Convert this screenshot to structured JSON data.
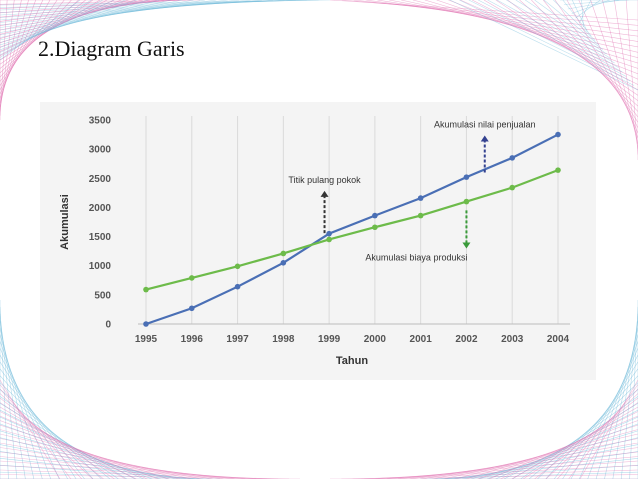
{
  "slide": {
    "title": "2.Diagram Garis"
  },
  "colors": {
    "sales": "#4a6fb5",
    "production": "#6dbb4a",
    "arrow_sales": "#33418f",
    "arrow_breakeven": "#333333",
    "arrow_production": "#3a9a3a",
    "decor_pink": "#e070b0",
    "decor_blue": "#6bb8d8"
  },
  "chart_data": {
    "type": "line",
    "xlabel": "Tahun",
    "ylabel": "Akumulasi",
    "ylim": [
      0,
      3500
    ],
    "yticks": [
      0,
      500,
      1000,
      1500,
      2000,
      2500,
      3000,
      3500
    ],
    "x": [
      "1995",
      "1996",
      "1997",
      "1998",
      "1999",
      "2000",
      "2001",
      "2002",
      "2003",
      "2004"
    ],
    "grid": "vertical",
    "series": [
      {
        "name": "Akumulasi nilai penjualan",
        "values": [
          0,
          270,
          640,
          1050,
          1550,
          1860,
          2160,
          2520,
          2850,
          3250
        ]
      },
      {
        "name": "Akumulasi biaya produksi",
        "values": [
          590,
          790,
          990,
          1210,
          1450,
          1660,
          1860,
          2100,
          2340,
          2640
        ]
      }
    ],
    "annotations": [
      {
        "text": "Akumulasi nilai penjualan",
        "x": 2002.4,
        "y": 3320,
        "arrow": "up",
        "arrow_from_y": 2600,
        "arrow_to_y": 3200
      },
      {
        "text": "Titik pulang pokok",
        "x": 1998.9,
        "y": 2370,
        "arrow": "up",
        "arrow_from_y": 1560,
        "arrow_to_y": 2250
      },
      {
        "text": "Akumulasi biaya produksi",
        "x": 2002.0,
        "y": 1170,
        "arrow": "down",
        "arrow_from_y": 1950,
        "arrow_to_y": 1330
      }
    ]
  }
}
